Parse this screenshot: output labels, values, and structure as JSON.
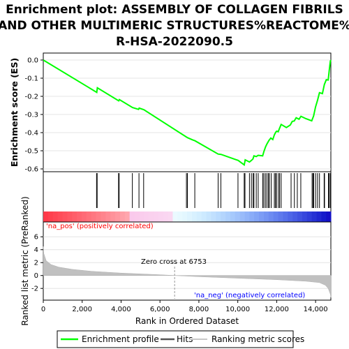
{
  "title": {
    "line1": "Enrichment plot: ASSEMBLY OF COLLAGEN FIBRILS",
    "line2": "AND OTHER MULTIMERIC STRUCTURES%REACTOME%",
    "line3": "R-HSA-2022090.5"
  },
  "chart_data": [
    {
      "type": "line",
      "panel": "enrichment",
      "ylabel": "Enrichment score (ES)",
      "ylim": [
        -0.6,
        0.0
      ],
      "yticks": [
        0.0,
        -0.1,
        -0.2,
        -0.3,
        -0.4,
        -0.5,
        -0.6
      ],
      "xlim": [
        0,
        15000
      ],
      "series": [
        {
          "name": "Enrichment profile",
          "color": "#00ff00",
          "points": [
            [
              0,
              0.0
            ],
            [
              2750,
              -0.178
            ],
            [
              2780,
              -0.153
            ],
            [
              3880,
              -0.225
            ],
            [
              3910,
              -0.218
            ],
            [
              4590,
              -0.262
            ],
            [
              4900,
              -0.272
            ],
            [
              4930,
              -0.265
            ],
            [
              5170,
              -0.274
            ],
            [
              7370,
              -0.425
            ],
            [
              7420,
              -0.428
            ],
            [
              7680,
              -0.44
            ],
            [
              7800,
              -0.445
            ],
            [
              8990,
              -0.518
            ],
            [
              9140,
              -0.52
            ],
            [
              9900,
              -0.549
            ],
            [
              10020,
              -0.553
            ],
            [
              10330,
              -0.578
            ],
            [
              10380,
              -0.55
            ],
            [
              10600,
              -0.562
            ],
            [
              10700,
              -0.553
            ],
            [
              10780,
              -0.545
            ],
            [
              10830,
              -0.528
            ],
            [
              10950,
              -0.532
            ],
            [
              11050,
              -0.525
            ],
            [
              11280,
              -0.528
            ],
            [
              11340,
              -0.505
            ],
            [
              11430,
              -0.478
            ],
            [
              11500,
              -0.462
            ],
            [
              11600,
              -0.443
            ],
            [
              11700,
              -0.43
            ],
            [
              11800,
              -0.438
            ],
            [
              11880,
              -0.412
            ],
            [
              11950,
              -0.398
            ],
            [
              12000,
              -0.392
            ],
            [
              12080,
              -0.395
            ],
            [
              12150,
              -0.375
            ],
            [
              12230,
              -0.355
            ],
            [
              12500,
              -0.372
            ],
            [
              12700,
              -0.358
            ],
            [
              12800,
              -0.338
            ],
            [
              12900,
              -0.336
            ],
            [
              13000,
              -0.318
            ],
            [
              13150,
              -0.326
            ],
            [
              13250,
              -0.31
            ],
            [
              13500,
              -0.323
            ],
            [
              13800,
              -0.335
            ],
            [
              13900,
              -0.308
            ],
            [
              14000,
              -0.258
            ],
            [
              14100,
              -0.222
            ],
            [
              14200,
              -0.18
            ],
            [
              14350,
              -0.185
            ],
            [
              14450,
              -0.135
            ],
            [
              14550,
              -0.108
            ],
            [
              14650,
              -0.11
            ],
            [
              14700,
              -0.06
            ],
            [
              14760,
              -0.005
            ],
            [
              14790,
              0.0
            ]
          ]
        }
      ]
    },
    {
      "type": "scatter",
      "panel": "hits",
      "series": [
        {
          "name": "Hits",
          "color": "#000000",
          "x": [
            2740,
            2770,
            3870,
            3900,
            4580,
            4920,
            5160,
            7360,
            7410,
            7790,
            8990,
            9130,
            10010,
            10330,
            10370,
            10600,
            10700,
            10790,
            10830,
            10950,
            11050,
            11280,
            11340,
            11420,
            11500,
            11580,
            11620,
            11720,
            11880,
            11940,
            11990,
            12090,
            12150,
            12230,
            12740,
            12910,
            13060,
            13240,
            13820,
            13870,
            13900,
            14000,
            14100,
            14200,
            14440,
            14460,
            14660,
            14700,
            14760
          ]
        }
      ]
    },
    {
      "type": "area",
      "panel": "ranked-metric",
      "ylabel": "Ranked list metric (PreRanked)",
      "xlabel": "Rank in Ordered Dataset",
      "xlim": [
        0,
        15000
      ],
      "xticks": [
        0,
        2000,
        4000,
        6000,
        8000,
        10000,
        12000,
        14000
      ],
      "xtick_labels": [
        "0",
        "2,000",
        "4,000",
        "6,000",
        "8,000",
        "10,000",
        "12,000",
        "14,000"
      ],
      "ylim": [
        -3.6,
        7.0
      ],
      "yticks": [
        6,
        4,
        2,
        0,
        -2
      ],
      "series": [
        {
          "name": "Ranking metric scores",
          "color": "#c0c0c0",
          "x": [
            0,
            30,
            150,
            400,
            800,
            1500,
            2500,
            4000,
            6000,
            6753,
            8000,
            10000,
            12000,
            13500,
            14200,
            14500,
            14650,
            14760,
            14790
          ],
          "y": [
            4.5,
            3.4,
            2.3,
            1.7,
            1.3,
            0.95,
            0.65,
            0.38,
            0.12,
            0.0,
            -0.18,
            -0.42,
            -0.65,
            -0.88,
            -1.1,
            -1.5,
            -2.0,
            -2.9,
            -3.4
          ]
        }
      ],
      "zero_cross": 6753
    }
  ],
  "annotations": {
    "zero_cross": "Zero cross at 6753",
    "na_pos": "'na_pos' (positively correlated)",
    "na_neg": "'na_neg' (negatively correlated)"
  },
  "colors": {
    "pos_text": "#ff0000",
    "neg_text": "#0000ff",
    "profile": "#00ff00"
  },
  "legend": {
    "items": [
      {
        "label": "Enrichment profile",
        "color": "#00ff00"
      },
      {
        "label": "Hits",
        "color": "#000000"
      },
      {
        "label": "Ranking metric scores",
        "color": "#c0c0c0"
      }
    ]
  }
}
